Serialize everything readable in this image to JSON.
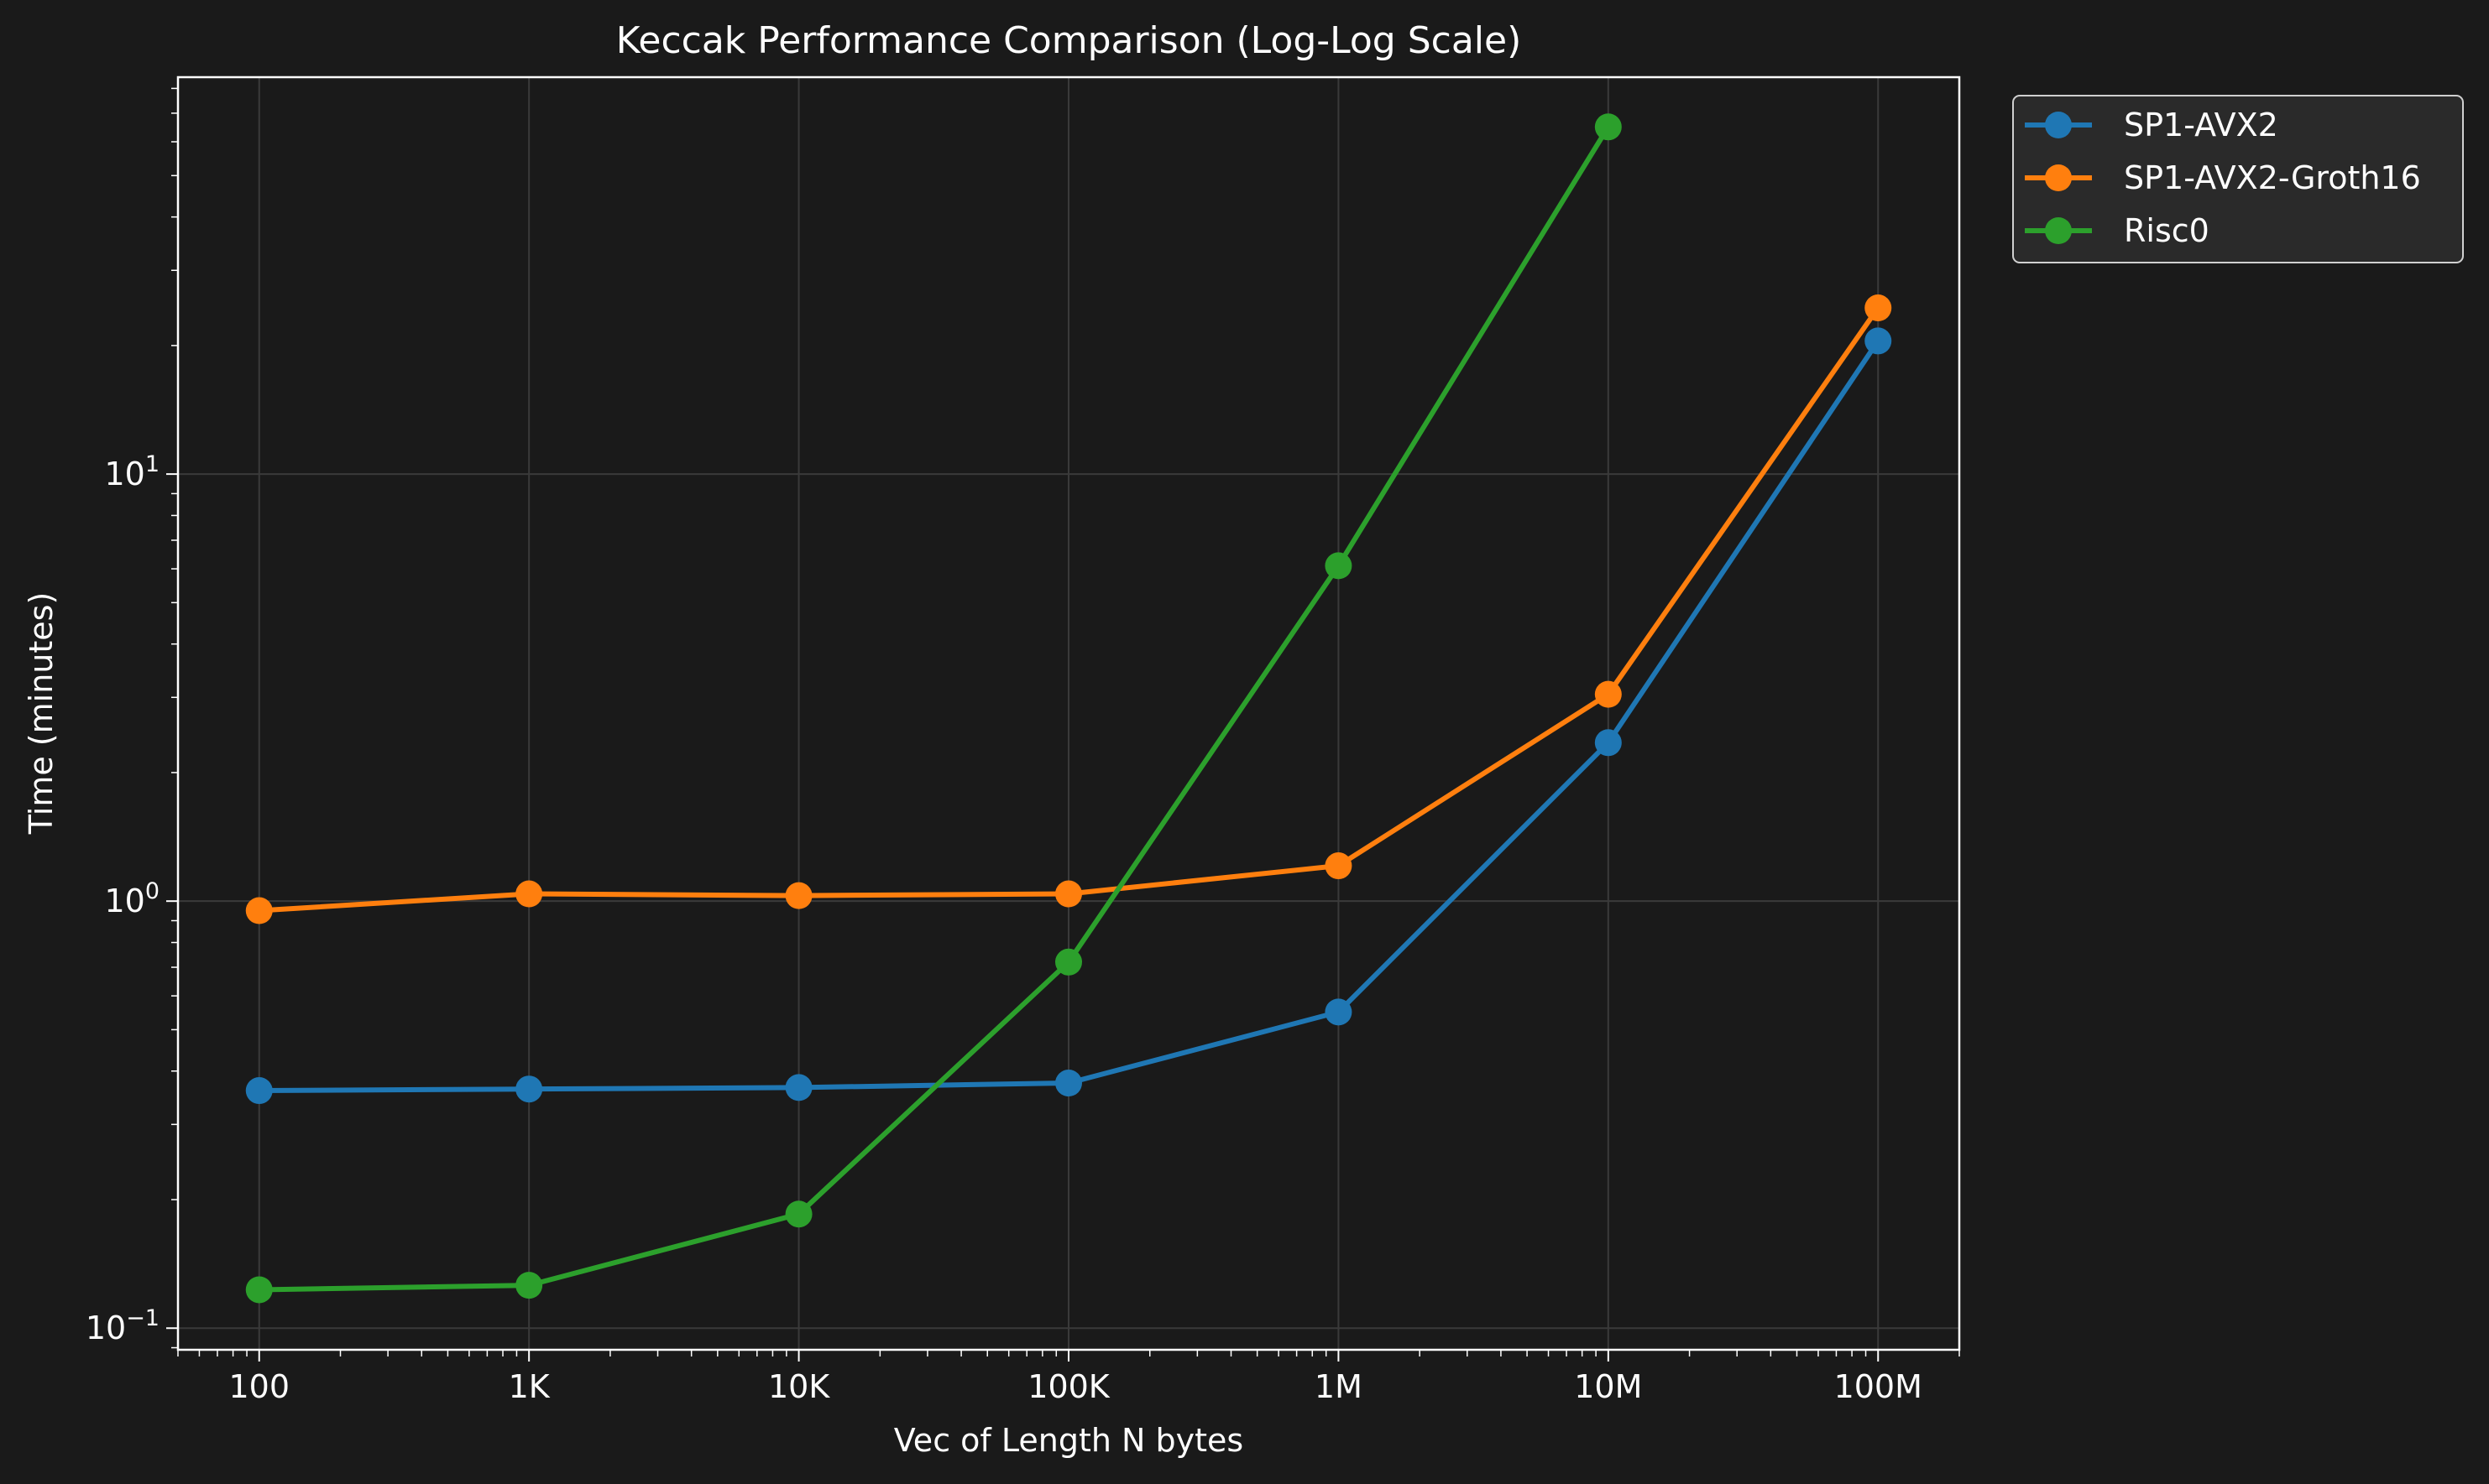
{
  "chart_data": {
    "type": "line",
    "title": "Keccak Performance Comparison (Log-Log Scale)",
    "xlabel": "Vec of Length N bytes",
    "ylabel": "Time (minutes)",
    "x_scale": "log",
    "y_scale": "log",
    "x": [
      100,
      1000,
      10000,
      100000,
      1000000,
      10000000,
      100000000
    ],
    "x_tick_labels": [
      "100",
      "1K",
      "10K",
      "100K",
      "1M",
      "10M",
      "100M"
    ],
    "y_ticks": [
      {
        "value": 0.1,
        "base": "10",
        "exp": "−1"
      },
      {
        "value": 1,
        "base": "10",
        "exp": "0"
      },
      {
        "value": 10,
        "base": "10",
        "exp": "1"
      }
    ],
    "xlim": [
      50,
      200000000
    ],
    "ylim": [
      0.089,
      85
    ],
    "grid": true,
    "legend_position": "outside top-right",
    "series": [
      {
        "name": "SP1-AVX2",
        "color": "#1f77b4",
        "values": [
          0.36,
          0.363,
          0.366,
          0.375,
          0.55,
          2.35,
          20.5
        ]
      },
      {
        "name": "SP1-AVX2-Groth16",
        "color": "#ff7f0e",
        "values": [
          0.95,
          1.04,
          1.03,
          1.04,
          1.21,
          3.05,
          24.5
        ]
      },
      {
        "name": "Risc0",
        "color": "#2ca02c",
        "values": [
          0.123,
          0.126,
          0.185,
          0.72,
          6.1,
          65,
          null
        ]
      }
    ]
  }
}
